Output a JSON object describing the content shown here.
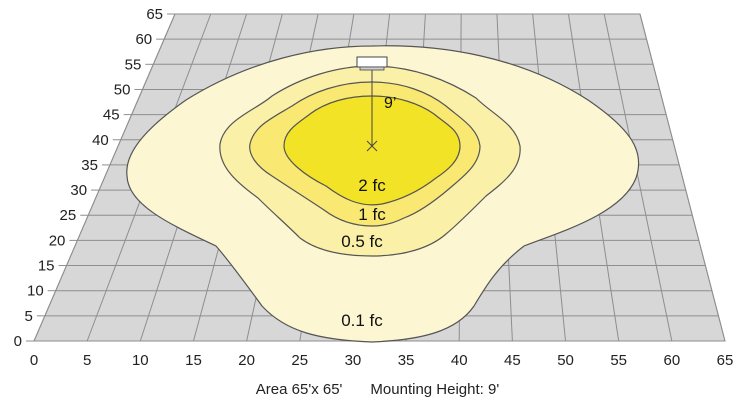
{
  "diagram": {
    "caption": {
      "area": "Area 65'x 65'",
      "mounting_height": "Mounting Height: 9'"
    },
    "x_ticks": [
      "0",
      "5",
      "10",
      "15",
      "20",
      "25",
      "30",
      "35",
      "40",
      "45",
      "50",
      "55",
      "60",
      "65"
    ],
    "y_ticks": [
      "0",
      "5",
      "10",
      "15",
      "20",
      "25",
      "30",
      "35",
      "40",
      "45",
      "50",
      "55",
      "60",
      "65"
    ],
    "height_label": "9’",
    "contours": [
      {
        "label": "0.1 fc",
        "color": "#fdf6d2"
      },
      {
        "label": "0.5 fc",
        "color": "#fbf0a8"
      },
      {
        "label": "1 fc",
        "color": "#f9e872"
      },
      {
        "label": "2 fc",
        "color": "#f3e326"
      }
    ],
    "colors": {
      "floor": "#d7d7d7",
      "grid": "#8e8e8e",
      "outline": "#555555"
    }
  }
}
